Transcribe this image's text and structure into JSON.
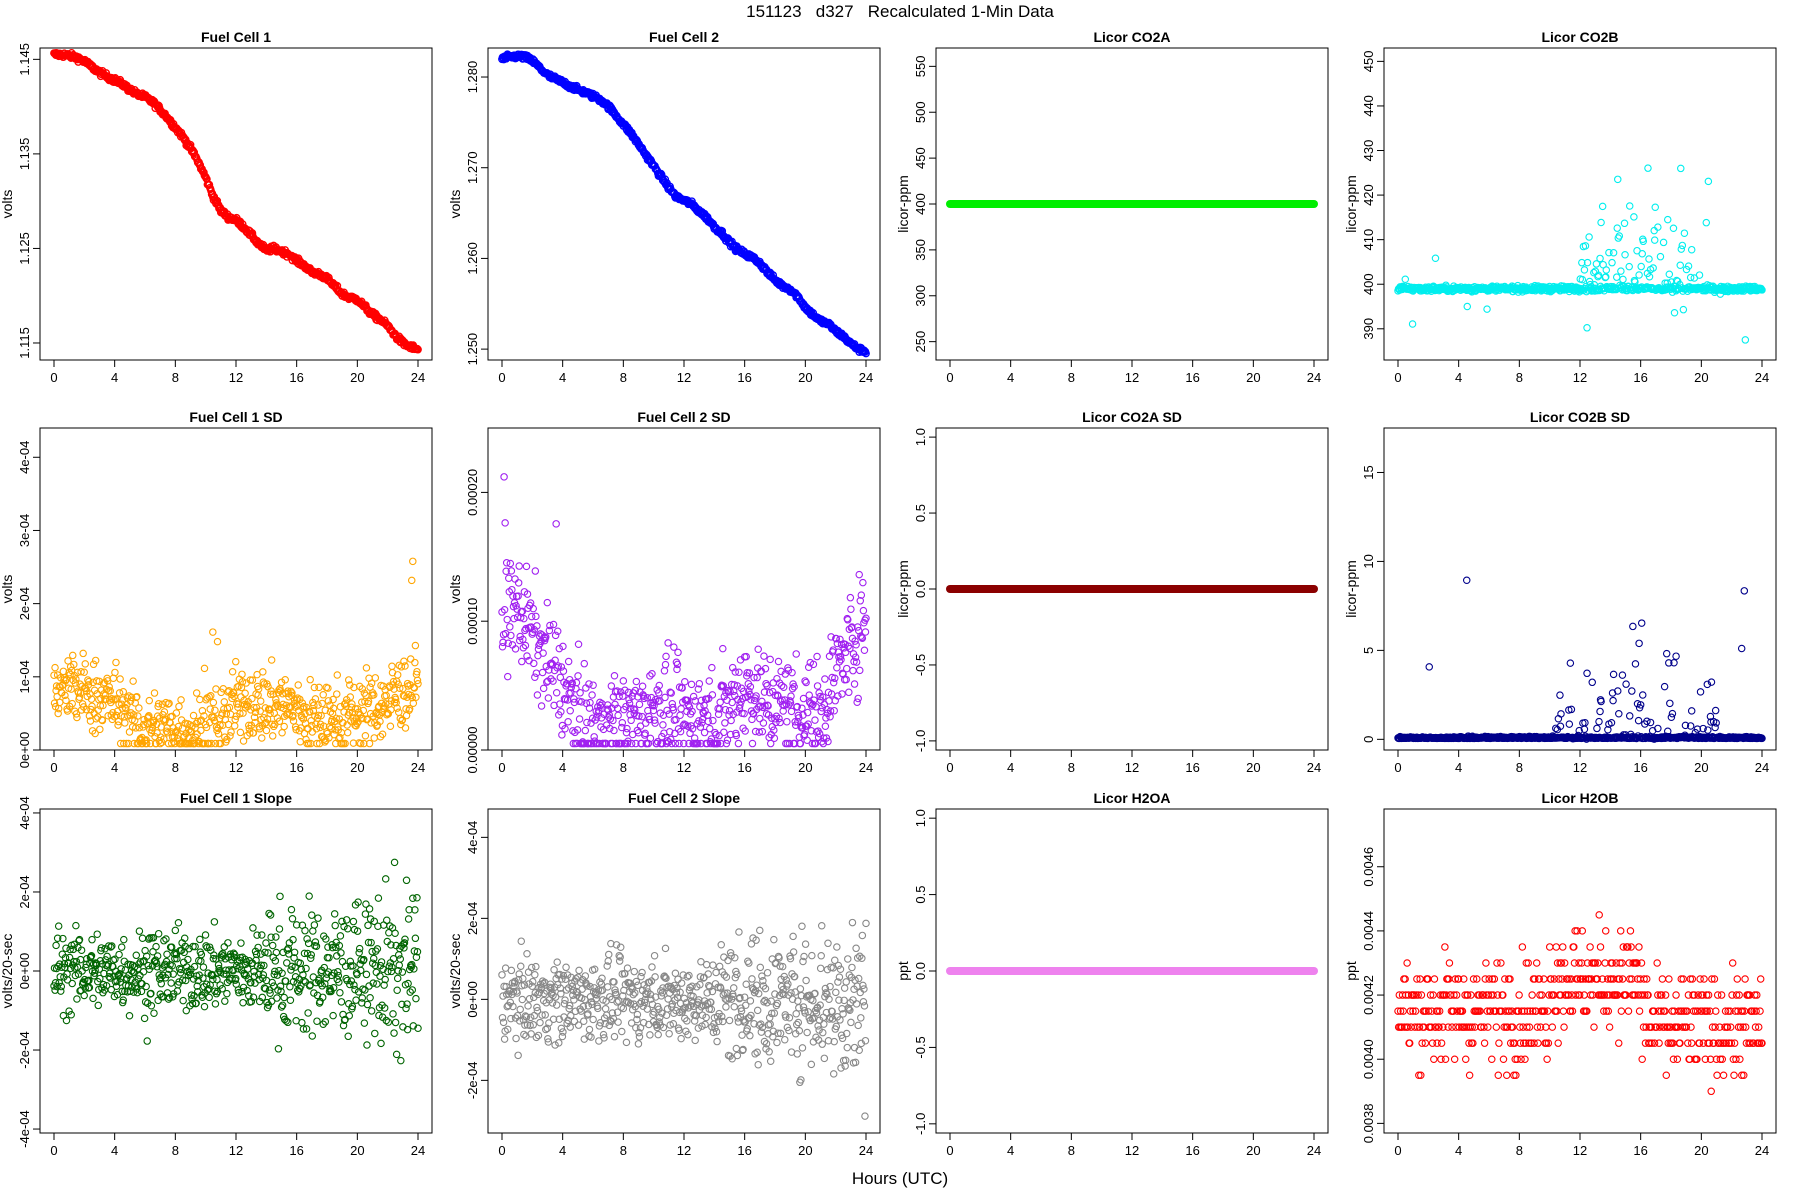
{
  "page": {
    "title": "151123   d327   Recalculated 1-Min Data",
    "xlabel": "Hours (UTC)"
  },
  "chart_data": [
    {
      "id": "fc1",
      "type": "scatter",
      "title": "Fuel Cell 1",
      "ylabel": "volts",
      "color": "#ff0000",
      "xlim": [
        0,
        24
      ],
      "xticks": [
        "0",
        "4",
        "8",
        "12",
        "16",
        "20",
        "24"
      ],
      "ylim": [
        1.1132,
        1.1462
      ],
      "yticks": [
        "1.115",
        "1.125",
        "1.135",
        "1.145"
      ],
      "x": [
        0,
        0.5,
        1,
        1.5,
        2,
        2.5,
        3,
        3.5,
        4,
        4.5,
        5,
        5.5,
        6,
        6.5,
        7,
        7.5,
        8,
        8.5,
        9,
        9.5,
        10,
        10.5,
        11,
        11.5,
        12,
        12.5,
        13,
        13.5,
        14,
        14.5,
        15,
        15.5,
        16,
        16.5,
        17,
        17.5,
        18,
        18.5,
        19,
        19.5,
        20,
        20.5,
        21,
        21.5,
        22,
        22.5,
        23,
        23.5,
        24
      ],
      "y": [
        1.1455,
        1.1455,
        1.1454,
        1.1452,
        1.1448,
        1.1442,
        1.1436,
        1.1432,
        1.1428,
        1.1424,
        1.1418,
        1.1413,
        1.141,
        1.1405,
        1.1397,
        1.1388,
        1.1378,
        1.1368,
        1.1356,
        1.1342,
        1.1325,
        1.1305,
        1.129,
        1.1283,
        1.128,
        1.1273,
        1.1264,
        1.1255,
        1.1248,
        1.125,
        1.1247,
        1.1244,
        1.1237,
        1.1232,
        1.1225,
        1.1223,
        1.1218,
        1.121,
        1.1202,
        1.1198,
        1.1196,
        1.1188,
        1.118,
        1.1175,
        1.1168,
        1.1158,
        1.115,
        1.1146,
        1.1143
      ],
      "jitter": 0.0003,
      "mode": "line"
    },
    {
      "id": "fc2",
      "type": "scatter",
      "title": "Fuel Cell 2",
      "ylabel": "volts",
      "color": "#0000ff",
      "xlim": [
        0,
        24
      ],
      "xticks": [
        "0",
        "4",
        "8",
        "12",
        "16",
        "20",
        "24"
      ],
      "ylim": [
        1.2488,
        1.2832
      ],
      "yticks": [
        "1.250",
        "1.260",
        "1.270",
        "1.280"
      ],
      "x": [
        0,
        0.5,
        1,
        1.5,
        2,
        2.5,
        3,
        3.5,
        4,
        4.5,
        5,
        5.5,
        6,
        6.5,
        7,
        7.5,
        8,
        8.5,
        9,
        9.5,
        10,
        10.5,
        11,
        11.5,
        12,
        12.5,
        13,
        13.5,
        14,
        14.5,
        15,
        15.5,
        16,
        16.5,
        17,
        17.5,
        18,
        18.5,
        19,
        19.5,
        20,
        20.5,
        21,
        21.5,
        22,
        22.5,
        23,
        23.5,
        24
      ],
      "y": [
        1.282,
        1.2822,
        1.2823,
        1.2822,
        1.2818,
        1.281,
        1.2802,
        1.2798,
        1.2794,
        1.279,
        1.2786,
        1.2783,
        1.2779,
        1.2775,
        1.2768,
        1.2758,
        1.2748,
        1.2738,
        1.2726,
        1.2714,
        1.2702,
        1.269,
        1.2678,
        1.2668,
        1.2664,
        1.266,
        1.2652,
        1.2645,
        1.2635,
        1.2628,
        1.2618,
        1.261,
        1.2605,
        1.2601,
        1.2595,
        1.2585,
        1.2576,
        1.257,
        1.2566,
        1.2558,
        1.2546,
        1.2538,
        1.2531,
        1.2528,
        1.252,
        1.2514,
        1.2506,
        1.25,
        1.2497
      ],
      "jitter": 0.0003,
      "mode": "line"
    },
    {
      "id": "co2a",
      "type": "scatter",
      "title": "Licor CO2A",
      "ylabel": "licor-ppm",
      "color": "#00ee00",
      "xlim": [
        0,
        24
      ],
      "xticks": [
        "0",
        "4",
        "8",
        "12",
        "16",
        "20",
        "24"
      ],
      "ylim": [
        230,
        570
      ],
      "yticks": [
        "250",
        "300",
        "350",
        "400",
        "450",
        "500",
        "550"
      ],
      "x": [
        0,
        24
      ],
      "y": [
        400,
        400
      ],
      "jitter": 0,
      "mode": "flat"
    },
    {
      "id": "co2b",
      "type": "scatter",
      "title": "Licor CO2B",
      "ylabel": "licor-ppm",
      "color": "#00eeee",
      "xlim": [
        0,
        24
      ],
      "xticks": [
        "0",
        "4",
        "8",
        "12",
        "16",
        "20",
        "24"
      ],
      "ylim": [
        383,
        453
      ],
      "yticks": [
        "390",
        "400",
        "410",
        "420",
        "430",
        "440",
        "450"
      ],
      "x": [
        0,
        24
      ],
      "y": [
        399,
        399
      ],
      "jitter": 0.3,
      "mode": "co2b"
    },
    {
      "id": "fc1sd",
      "type": "scatter",
      "title": "Fuel Cell 1 SD",
      "ylabel": "volts",
      "color": "#ffa500",
      "xlim": [
        0,
        24
      ],
      "xticks": [
        "0",
        "4",
        "8",
        "12",
        "16",
        "20",
        "24"
      ],
      "ylim": [
        0,
        0.00044
      ],
      "yticks": [
        "0e+00",
        "1e-04",
        "2e-04",
        "3e-04",
        "4e-04"
      ],
      "x": [
        0,
        1,
        2,
        3,
        4,
        5,
        6,
        7,
        8,
        9,
        10,
        11,
        12,
        13,
        14,
        15,
        16,
        17,
        18,
        19,
        20,
        21,
        22,
        23,
        24
      ],
      "y": [
        7.5e-05,
        8.5e-05,
        7.8e-05,
        7.2e-05,
        6.5e-05,
        4e-05,
        2.5e-05,
        3.5e-05,
        3e-05,
        2.7e-05,
        2.8e-05,
        4e-05,
        6e-05,
        6.5e-05,
        6e-05,
        6.2e-05,
        5.5e-05,
        4e-05,
        4e-05,
        4.5e-05,
        5e-05,
        5.5e-05,
        6.5e-05,
        8e-05,
        9e-05
      ],
      "jitter": 2.5e-05,
      "mode": "sd"
    },
    {
      "id": "fc2sd",
      "type": "scatter",
      "title": "Fuel Cell 2 SD",
      "ylabel": "volts",
      "color": "#a020f0",
      "xlim": [
        0,
        24
      ],
      "xticks": [
        "0",
        "4",
        "8",
        "12",
        "16",
        "20",
        "24"
      ],
      "ylim": [
        0,
        0.00025
      ],
      "yticks": [
        "0.00000",
        "0.00010",
        "0.00020"
      ],
      "x": [
        0,
        1,
        2,
        3,
        4,
        5,
        6,
        7,
        8,
        9,
        10,
        11,
        12,
        13,
        14,
        15,
        16,
        17,
        18,
        19,
        20,
        21,
        22,
        23,
        24
      ],
      "y": [
        0.0001,
        0.00011,
        9e-05,
        7e-05,
        5e-05,
        2.5e-05,
        1.8e-05,
        2e-05,
        2.2e-05,
        2.5e-05,
        3e-05,
        2.8e-05,
        2.2e-05,
        2.5e-05,
        2e-05,
        3.5e-05,
        5e-05,
        4e-05,
        3.5e-05,
        3.5e-05,
        3e-05,
        3e-05,
        6e-05,
        8e-05,
        0.0001
      ],
      "jitter": 2e-05,
      "mode": "sd"
    },
    {
      "id": "co2asd",
      "type": "scatter",
      "title": "Licor CO2A SD",
      "ylabel": "licor-ppm",
      "color": "#8b0000",
      "xlim": [
        0,
        24
      ],
      "xticks": [
        "0",
        "4",
        "8",
        "12",
        "16",
        "20",
        "24"
      ],
      "ylim": [
        -1.06,
        1.06
      ],
      "yticks": [
        "-1.0",
        "-0.5",
        "0.0",
        "0.5",
        "1.0"
      ],
      "x": [
        0,
        24
      ],
      "y": [
        0,
        0
      ],
      "jitter": 0,
      "mode": "flat"
    },
    {
      "id": "co2bsd",
      "type": "scatter",
      "title": "Licor CO2B SD",
      "ylabel": "licor-ppm",
      "color": "#00008b",
      "xlim": [
        0,
        24
      ],
      "xticks": [
        "0",
        "4",
        "8",
        "12",
        "16",
        "20",
        "24"
      ],
      "ylim": [
        -0.6,
        17.5
      ],
      "yticks": [
        "0",
        "5",
        "10",
        "15"
      ],
      "x": [
        0,
        24
      ],
      "y": [
        0.05,
        0.05
      ],
      "jitter": 0.03,
      "mode": "co2bsd"
    },
    {
      "id": "fc1sl",
      "type": "scatter",
      "title": "Fuel Cell 1 Slope",
      "ylabel": "volts/20-sec",
      "color": "#006400",
      "xlim": [
        0,
        24
      ],
      "xticks": [
        "0",
        "4",
        "8",
        "12",
        "16",
        "20",
        "24"
      ],
      "ylim": [
        -0.00041,
        0.00041
      ],
      "yticks": [
        "-4e-04",
        "-2e-04",
        "0e+00",
        "2e-04",
        "4e-04"
      ],
      "x": [
        0,
        24
      ],
      "y": [
        0,
        0
      ],
      "jitter": 5e-05,
      "mode": "slope"
    },
    {
      "id": "fc2sl",
      "type": "scatter",
      "title": "Fuel Cell 2 Slope",
      "ylabel": "volts/20-sec",
      "color": "#888888",
      "xlim": [
        0,
        24
      ],
      "xticks": [
        "0",
        "4",
        "8",
        "12",
        "16",
        "20",
        "24"
      ],
      "ylim": [
        -0.00033,
        0.00047
      ],
      "yticks": [
        "-2e-04",
        "0e+00",
        "2e-04",
        "4e-04"
      ],
      "x": [
        0,
        24
      ],
      "y": [
        0,
        0
      ],
      "jitter": 5e-05,
      "mode": "slope"
    },
    {
      "id": "h2oa",
      "type": "scatter",
      "title": "Licor H2OA",
      "ylabel": "ppt",
      "color": "#ee82ee",
      "xlim": [
        0,
        24
      ],
      "xticks": [
        "0",
        "4",
        "8",
        "12",
        "16",
        "20",
        "24"
      ],
      "ylim": [
        -1.06,
        1.06
      ],
      "yticks": [
        "-1.0",
        "-0.5",
        "0.0",
        "0.5",
        "1.0"
      ],
      "x": [
        0,
        24
      ],
      "y": [
        0,
        0
      ],
      "jitter": 0,
      "mode": "flat"
    },
    {
      "id": "h2ob",
      "type": "scatter",
      "title": "Licor H2OB",
      "ylabel": "ppt",
      "color": "#ff0000",
      "xlim": [
        0,
        24
      ],
      "xticks": [
        "0",
        "4",
        "8",
        "12",
        "16",
        "20",
        "24"
      ],
      "ylim": [
        0.00377,
        0.00478
      ],
      "yticks": [
        "0.0038",
        "0.0040",
        "0.0042",
        "0.0044",
        "0.0046"
      ],
      "x": [
        0,
        24
      ],
      "y": [
        0.00415,
        0.00415
      ],
      "jitter": 0.0001,
      "mode": "h2ob"
    }
  ]
}
